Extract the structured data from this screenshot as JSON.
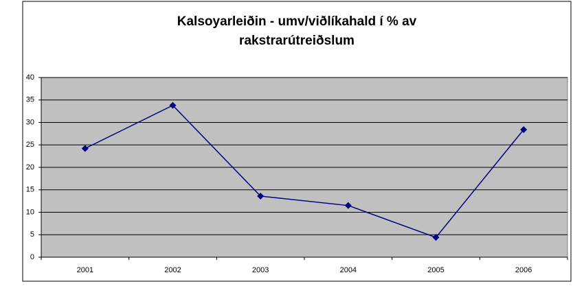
{
  "chart_data": {
    "type": "line",
    "title": [
      "Kalsoyarleiðin - umv/viðlíkahald í % av",
      "rakstrarútreiðslum"
    ],
    "categories": [
      "2001",
      "2002",
      "2003",
      "2004",
      "2005",
      "2006"
    ],
    "series": [
      {
        "color": "#000080",
        "values": [
          24.2,
          33.8,
          13.6,
          11.5,
          4.4,
          28.4
        ]
      }
    ],
    "ylim": [
      0,
      40
    ],
    "yticks": [
      0,
      5,
      10,
      15,
      20,
      25,
      30,
      35,
      40
    ],
    "grid": true,
    "plot_background": "#c0c0c0"
  }
}
